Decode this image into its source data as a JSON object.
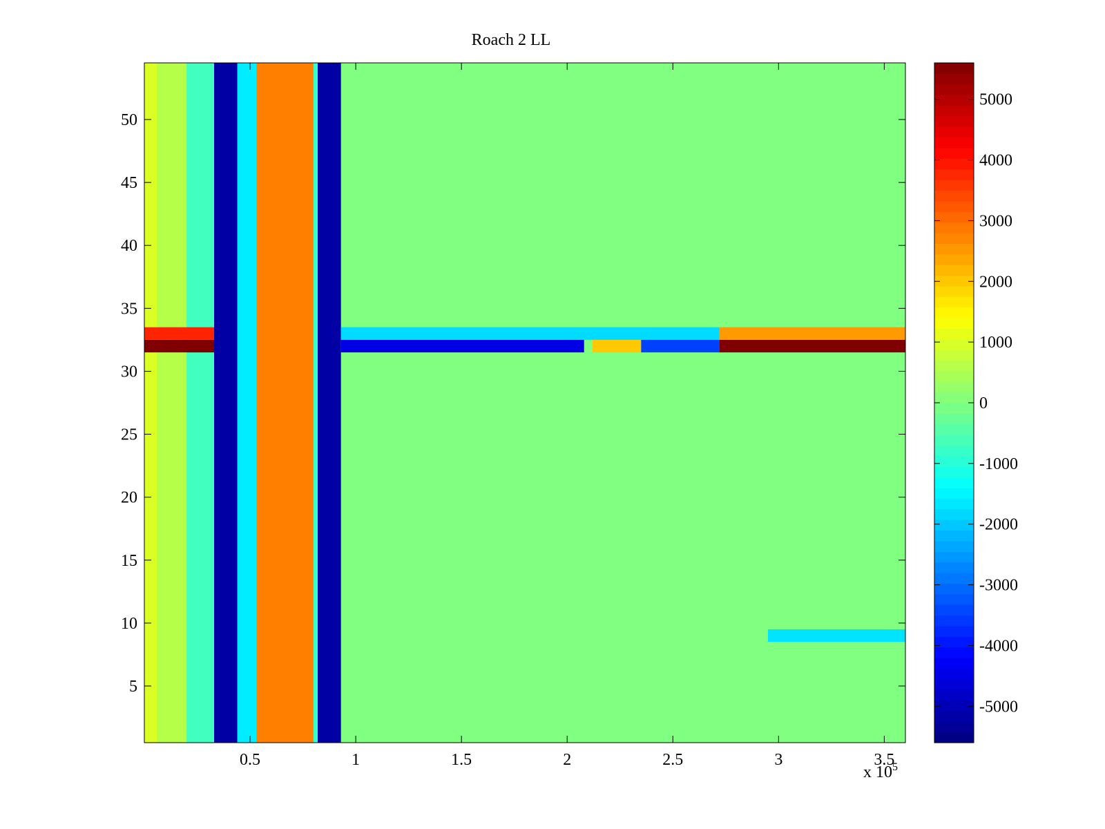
{
  "chart_data": {
    "type": "heatmap",
    "title": "Roach 2 LL",
    "xlabel": "",
    "ylabel": "",
    "x_multiplier_label": "x 10",
    "x_multiplier_exponent": "5",
    "xlim": [
      0,
      3.6
    ],
    "ylim": [
      0.5,
      54.5
    ],
    "xticks": [
      {
        "value": 0.5,
        "label": "0.5"
      },
      {
        "value": 1,
        "label": "1"
      },
      {
        "value": 1.5,
        "label": "1.5"
      },
      {
        "value": 2,
        "label": "2"
      },
      {
        "value": 2.5,
        "label": "2.5"
      },
      {
        "value": 3,
        "label": "3"
      },
      {
        "value": 3.5,
        "label": "3.5"
      }
    ],
    "yticks": [
      {
        "value": 5,
        "label": "5"
      },
      {
        "value": 10,
        "label": "10"
      },
      {
        "value": 15,
        "label": "15"
      },
      {
        "value": 20,
        "label": "20"
      },
      {
        "value": 25,
        "label": "25"
      },
      {
        "value": 30,
        "label": "30"
      },
      {
        "value": 35,
        "label": "35"
      },
      {
        "value": 40,
        "label": "40"
      },
      {
        "value": 45,
        "label": "45"
      },
      {
        "value": 50,
        "label": "50"
      }
    ],
    "colorbar": {
      "colormap": "jet",
      "range": [
        -5600,
        5600
      ],
      "ticks": [
        {
          "value": 5000,
          "label": "5000"
        },
        {
          "value": 4000,
          "label": "4000"
        },
        {
          "value": 3000,
          "label": "3000"
        },
        {
          "value": 2000,
          "label": "2000"
        },
        {
          "value": 1000,
          "label": "1000"
        },
        {
          "value": 0,
          "label": "0"
        },
        {
          "value": -1000,
          "label": "-1000"
        },
        {
          "value": -2000,
          "label": "-2000"
        },
        {
          "value": -3000,
          "label": "-3000"
        },
        {
          "value": -4000,
          "label": "-4000"
        },
        {
          "value": -5000,
          "label": "-5000"
        }
      ]
    },
    "background_value": 0,
    "vertical_bands": [
      {
        "x_start": 0.0,
        "x_end": 0.06,
        "value": 1000
      },
      {
        "x_start": 0.06,
        "x_end": 0.2,
        "value": 600
      },
      {
        "x_start": 0.2,
        "x_end": 0.33,
        "value": -700
      },
      {
        "x_start": 0.33,
        "x_end": 0.44,
        "value": -5200
      },
      {
        "x_start": 0.44,
        "x_end": 0.53,
        "value": -1600
      },
      {
        "x_start": 0.53,
        "x_end": 0.8,
        "value": 2800
      },
      {
        "x_start": 0.8,
        "x_end": 0.82,
        "value": -800
      },
      {
        "x_start": 0.82,
        "x_end": 0.93,
        "value": -5200
      }
    ],
    "horizontal_bands": [
      {
        "y_start": 31.5,
        "y_end": 32.5,
        "segments": [
          {
            "x_start": 0.0,
            "x_end": 0.33,
            "value": 5600
          },
          {
            "x_start": 0.93,
            "x_end": 2.08,
            "value": -4500
          },
          {
            "x_start": 2.12,
            "x_end": 2.35,
            "value": 2000
          },
          {
            "x_start": 2.35,
            "x_end": 2.72,
            "value": -3500
          },
          {
            "x_start": 2.72,
            "x_end": 3.6,
            "value": 5600
          }
        ]
      },
      {
        "y_start": 32.5,
        "y_end": 33.5,
        "segments": [
          {
            "x_start": 0.0,
            "x_end": 0.33,
            "value": 3800
          },
          {
            "x_start": 0.93,
            "x_end": 2.72,
            "value": -1800
          },
          {
            "x_start": 2.72,
            "x_end": 3.6,
            "value": 2500
          }
        ]
      },
      {
        "y_start": 8.5,
        "y_end": 9.5,
        "segments": [
          {
            "x_start": 2.95,
            "x_end": 3.6,
            "value": -1700
          }
        ]
      }
    ]
  }
}
